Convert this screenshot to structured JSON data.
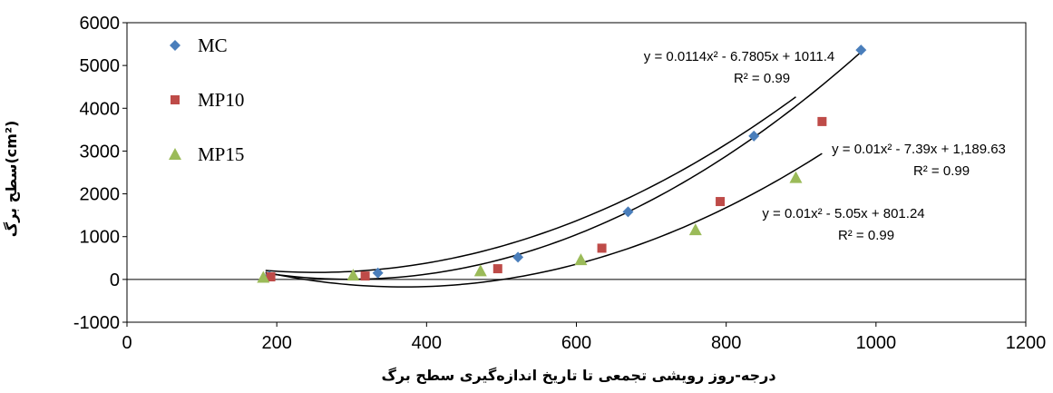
{
  "chart_data": {
    "type": "scatter",
    "xlabel": "درجه-روز رویشی تجمعی تا تاریخ اندازه‌گیری سطح برگ",
    "ylabel_main": "سطح برگ",
    "ylabel_unit": "(cm²)",
    "xlim": [
      0,
      1200
    ],
    "ylim": [
      -1000,
      6000
    ],
    "xticks": [
      0,
      200,
      400,
      600,
      800,
      1000,
      1200
    ],
    "yticks": [
      -1000,
      0,
      1000,
      2000,
      3000,
      4000,
      5000,
      6000
    ],
    "grid": false,
    "legend_position": "top-left",
    "series": [
      {
        "name": "MC",
        "marker": "diamond",
        "color": "#4a7ebb",
        "x": [
          190,
          335,
          522,
          669,
          837,
          980
        ],
        "y": [
          80,
          150,
          520,
          1580,
          3350,
          5360
        ],
        "trend": {
          "a": 0.0114,
          "b": -6.7805,
          "c": 1011.4,
          "x_range": [
            185,
            980
          ]
        },
        "equation": "y = 0.0114x² - 6.7805x + 1011.4",
        "r2": "R² = 0.99"
      },
      {
        "name": "MP10",
        "marker": "square",
        "color": "#be4b48",
        "x": [
          192,
          318,
          495,
          634,
          792,
          928
        ],
        "y": [
          60,
          80,
          250,
          730,
          1820,
          3690
        ],
        "trend": {
          "a": 0.01,
          "b": -7.39,
          "c": 1189.63,
          "x_range": [
            185,
            928
          ]
        },
        "equation": "y = 0.01x² - 7.39x + 1,189.63",
        "r2": "R² = 0.99"
      },
      {
        "name": "MP15",
        "marker": "triangle",
        "color": "#9bbb59",
        "x": [
          182,
          302,
          472,
          606,
          759,
          893
        ],
        "y": [
          50,
          100,
          200,
          460,
          1160,
          2380
        ],
        "trend": {
          "a": 0.01,
          "b": -5.05,
          "c": 801.24,
          "x_range": [
            185,
            893
          ]
        },
        "equation": "y = 0.01x² - 5.05x + 801.24",
        "r2": "R² = 0.99"
      }
    ]
  }
}
